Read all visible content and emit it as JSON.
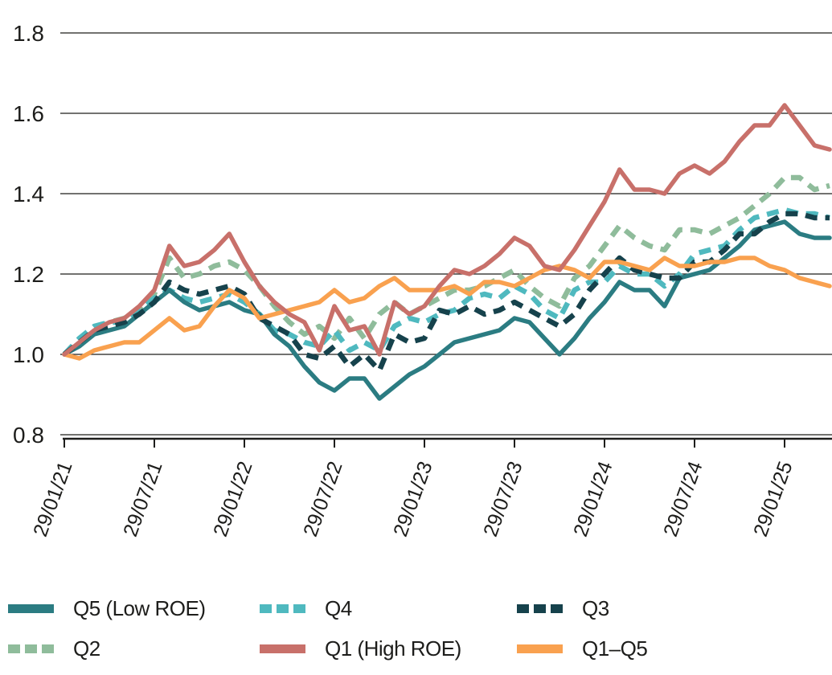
{
  "chart_data": {
    "type": "line",
    "title": "",
    "xlabel": "",
    "ylabel": "",
    "ylim": [
      0.8,
      1.8
    ],
    "grid": "horizontal",
    "axis_color": "#1d1d1b",
    "background": "#ffffff",
    "y_tick_labels": [
      "1.8",
      "1.6",
      "1.4",
      "1.2",
      "1.0",
      "0.8"
    ],
    "y_ticks": [
      1.8,
      1.6,
      1.4,
      1.2,
      1.0,
      0.8
    ],
    "x_tick_labels": [
      "29/01/21",
      "29/07/21",
      "29/01/22",
      "29/07/22",
      "29/01/23",
      "29/07/23",
      "29/01/24",
      "29/07/24",
      "29/01/25"
    ],
    "x_tick_every_n_points": 6,
    "sampling": "monthly points from 29/01/21 to 29/05/25, indexed to 1.0 at start",
    "series": [
      {
        "name": "Q2",
        "color": "#8fbc9b",
        "line_style": "dashed",
        "values": [
          1.0,
          1.03,
          1.06,
          1.08,
          1.09,
          1.11,
          1.15,
          1.24,
          1.19,
          1.2,
          1.22,
          1.23,
          1.21,
          1.17,
          1.12,
          1.08,
          1.05,
          1.07,
          1.04,
          1.09,
          1.04,
          1.1,
          1.13,
          1.1,
          1.12,
          1.14,
          1.16,
          1.16,
          1.17,
          1.19,
          1.21,
          1.17,
          1.14,
          1.12,
          1.19,
          1.22,
          1.27,
          1.32,
          1.29,
          1.27,
          1.26,
          1.31,
          1.31,
          1.3,
          1.32,
          1.34,
          1.37,
          1.4,
          1.44,
          1.44,
          1.41,
          1.42
        ]
      },
      {
        "name": "Q4",
        "color": "#4fb9bf",
        "line_style": "dashed",
        "values": [
          1.0,
          1.04,
          1.07,
          1.08,
          1.08,
          1.11,
          1.14,
          1.16,
          1.14,
          1.13,
          1.14,
          1.15,
          1.13,
          1.1,
          1.06,
          1.05,
          1.03,
          1.02,
          1.06,
          1.01,
          1.03,
          1.01,
          1.07,
          1.09,
          1.08,
          1.1,
          1.11,
          1.14,
          1.15,
          1.14,
          1.17,
          1.15,
          1.11,
          1.09,
          1.16,
          1.18,
          1.18,
          1.22,
          1.2,
          1.2,
          1.17,
          1.2,
          1.25,
          1.26,
          1.27,
          1.31,
          1.34,
          1.35,
          1.36,
          1.35,
          1.35,
          1.34
        ]
      },
      {
        "name": "Q5 (Low ROE)",
        "color": "#2b7c82",
        "line_style": "solid",
        "values": [
          1.0,
          1.02,
          1.05,
          1.06,
          1.07,
          1.1,
          1.13,
          1.16,
          1.13,
          1.11,
          1.12,
          1.13,
          1.11,
          1.1,
          1.05,
          1.02,
          0.97,
          0.93,
          0.91,
          0.94,
          0.94,
          0.89,
          0.92,
          0.95,
          0.97,
          1.0,
          1.03,
          1.04,
          1.05,
          1.06,
          1.09,
          1.08,
          1.04,
          1.0,
          1.04,
          1.09,
          1.13,
          1.18,
          1.16,
          1.16,
          1.12,
          1.19,
          1.2,
          1.21,
          1.24,
          1.27,
          1.31,
          1.32,
          1.33,
          1.3,
          1.29,
          1.29
        ]
      },
      {
        "name": "Q3",
        "color": "#16424c",
        "line_style": "dashed",
        "values": [
          1.0,
          1.03,
          1.06,
          1.07,
          1.08,
          1.1,
          1.13,
          1.18,
          1.16,
          1.15,
          1.16,
          1.17,
          1.15,
          1.09,
          1.07,
          1.05,
          1.0,
          0.99,
          1.02,
          0.97,
          1.0,
          0.96,
          1.05,
          1.03,
          1.04,
          1.11,
          1.1,
          1.12,
          1.1,
          1.11,
          1.13,
          1.11,
          1.09,
          1.07,
          1.1,
          1.16,
          1.2,
          1.24,
          1.21,
          1.2,
          1.19,
          1.19,
          1.23,
          1.23,
          1.26,
          1.3,
          1.3,
          1.33,
          1.35,
          1.35,
          1.34,
          1.34
        ]
      },
      {
        "name": "Q1–Q5",
        "color": "#f9a14f",
        "line_style": "solid",
        "values": [
          1.0,
          0.99,
          1.01,
          1.02,
          1.03,
          1.03,
          1.06,
          1.09,
          1.06,
          1.07,
          1.12,
          1.16,
          1.14,
          1.09,
          1.1,
          1.11,
          1.12,
          1.13,
          1.16,
          1.13,
          1.14,
          1.17,
          1.19,
          1.16,
          1.16,
          1.16,
          1.17,
          1.15,
          1.18,
          1.18,
          1.17,
          1.19,
          1.21,
          1.22,
          1.21,
          1.19,
          1.23,
          1.23,
          1.22,
          1.21,
          1.24,
          1.22,
          1.22,
          1.23,
          1.23,
          1.24,
          1.24,
          1.22,
          1.21,
          1.19,
          1.18,
          1.17
        ]
      },
      {
        "name": "Q1 (High ROE)",
        "color": "#c8706a",
        "line_style": "solid",
        "values": [
          1.0,
          1.03,
          1.06,
          1.08,
          1.09,
          1.12,
          1.16,
          1.27,
          1.22,
          1.23,
          1.26,
          1.3,
          1.23,
          1.17,
          1.13,
          1.1,
          1.08,
          1.01,
          1.12,
          1.06,
          1.07,
          1.0,
          1.13,
          1.1,
          1.12,
          1.17,
          1.21,
          1.2,
          1.22,
          1.25,
          1.29,
          1.27,
          1.22,
          1.21,
          1.26,
          1.32,
          1.38,
          1.46,
          1.41,
          1.41,
          1.4,
          1.45,
          1.47,
          1.45,
          1.48,
          1.53,
          1.57,
          1.57,
          1.62,
          1.57,
          1.52,
          1.51
        ]
      }
    ],
    "legend": {
      "position": "bottom",
      "entries": [
        {
          "label": "Q5 (Low ROE)",
          "color": "#2b7c82",
          "line_style": "solid"
        },
        {
          "label": "Q4",
          "color": "#4fb9bf",
          "line_style": "dashed"
        },
        {
          "label": "Q3",
          "color": "#16424c",
          "line_style": "dashed"
        },
        {
          "label": "Q2",
          "color": "#8fbc9b",
          "line_style": "dashed"
        },
        {
          "label": "Q1 (High ROE)",
          "color": "#c8706a",
          "line_style": "solid"
        },
        {
          "label": "Q1–Q5",
          "color": "#f9a14f",
          "line_style": "solid"
        }
      ]
    }
  }
}
